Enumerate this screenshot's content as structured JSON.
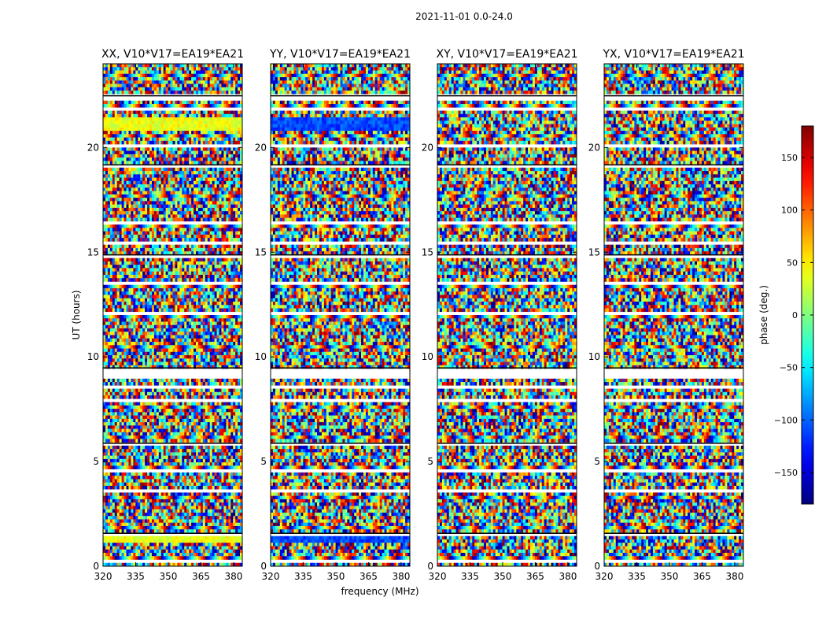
{
  "figure": {
    "suptitle": "2021-11-01 0.0-24.0"
  },
  "chart_data": {
    "type": "heatmap",
    "shared": {
      "xlabel": "frequency (MHz)",
      "ylabel": "UT (hours)",
      "xlim": [
        320,
        384
      ],
      "ylim": [
        0,
        24
      ],
      "xticks": [
        320,
        335,
        350,
        365,
        380
      ],
      "yticks": [
        0,
        5,
        10,
        15,
        20
      ],
      "colorbar": {
        "label": "phase (deg.)",
        "range": [
          -180,
          180
        ],
        "ticks": [
          -150,
          -100,
          -50,
          0,
          50,
          100,
          150
        ],
        "ticklabels": [
          "−150",
          "−100",
          "−50",
          "0",
          "50",
          "100",
          "150"
        ],
        "colormap": "jet",
        "colors": [
          "#00007f",
          "#0000ff",
          "#007fff",
          "#00ffff",
          "#7fff7f",
          "#ffff00",
          "#ff7f00",
          "#ff0000",
          "#7f0000"
        ]
      },
      "flagged_time_ranges_hours": [
        [
          0.2,
          0.4
        ],
        [
          1.4,
          1.6
        ],
        [
          3.5,
          3.7
        ],
        [
          4.5,
          4.7
        ],
        [
          5.7,
          5.9
        ],
        [
          7.8,
          8.0
        ],
        [
          8.4,
          8.6
        ],
        [
          8.9,
          9.5
        ],
        [
          12.0,
          12.2
        ],
        [
          13.4,
          13.6
        ],
        [
          14.7,
          14.9
        ],
        [
          15.4,
          15.6
        ],
        [
          16.4,
          16.5
        ],
        [
          19.0,
          19.2
        ],
        [
          20.0,
          20.2
        ],
        [
          21.8,
          21.9
        ],
        [
          22.3,
          22.5
        ]
      ]
    },
    "panels": [
      {
        "title": "XX, V10*V17=EA19*EA21",
        "phase_bias_deg": 40
      },
      {
        "title": "YY, V10*V17=EA19*EA21",
        "phase_bias_deg": -110
      },
      {
        "title": "XY, V10*V17=EA19*EA21",
        "phase_bias_deg": 0
      },
      {
        "title": "YX, V10*V17=EA19*EA21",
        "phase_bias_deg": 0
      }
    ]
  }
}
